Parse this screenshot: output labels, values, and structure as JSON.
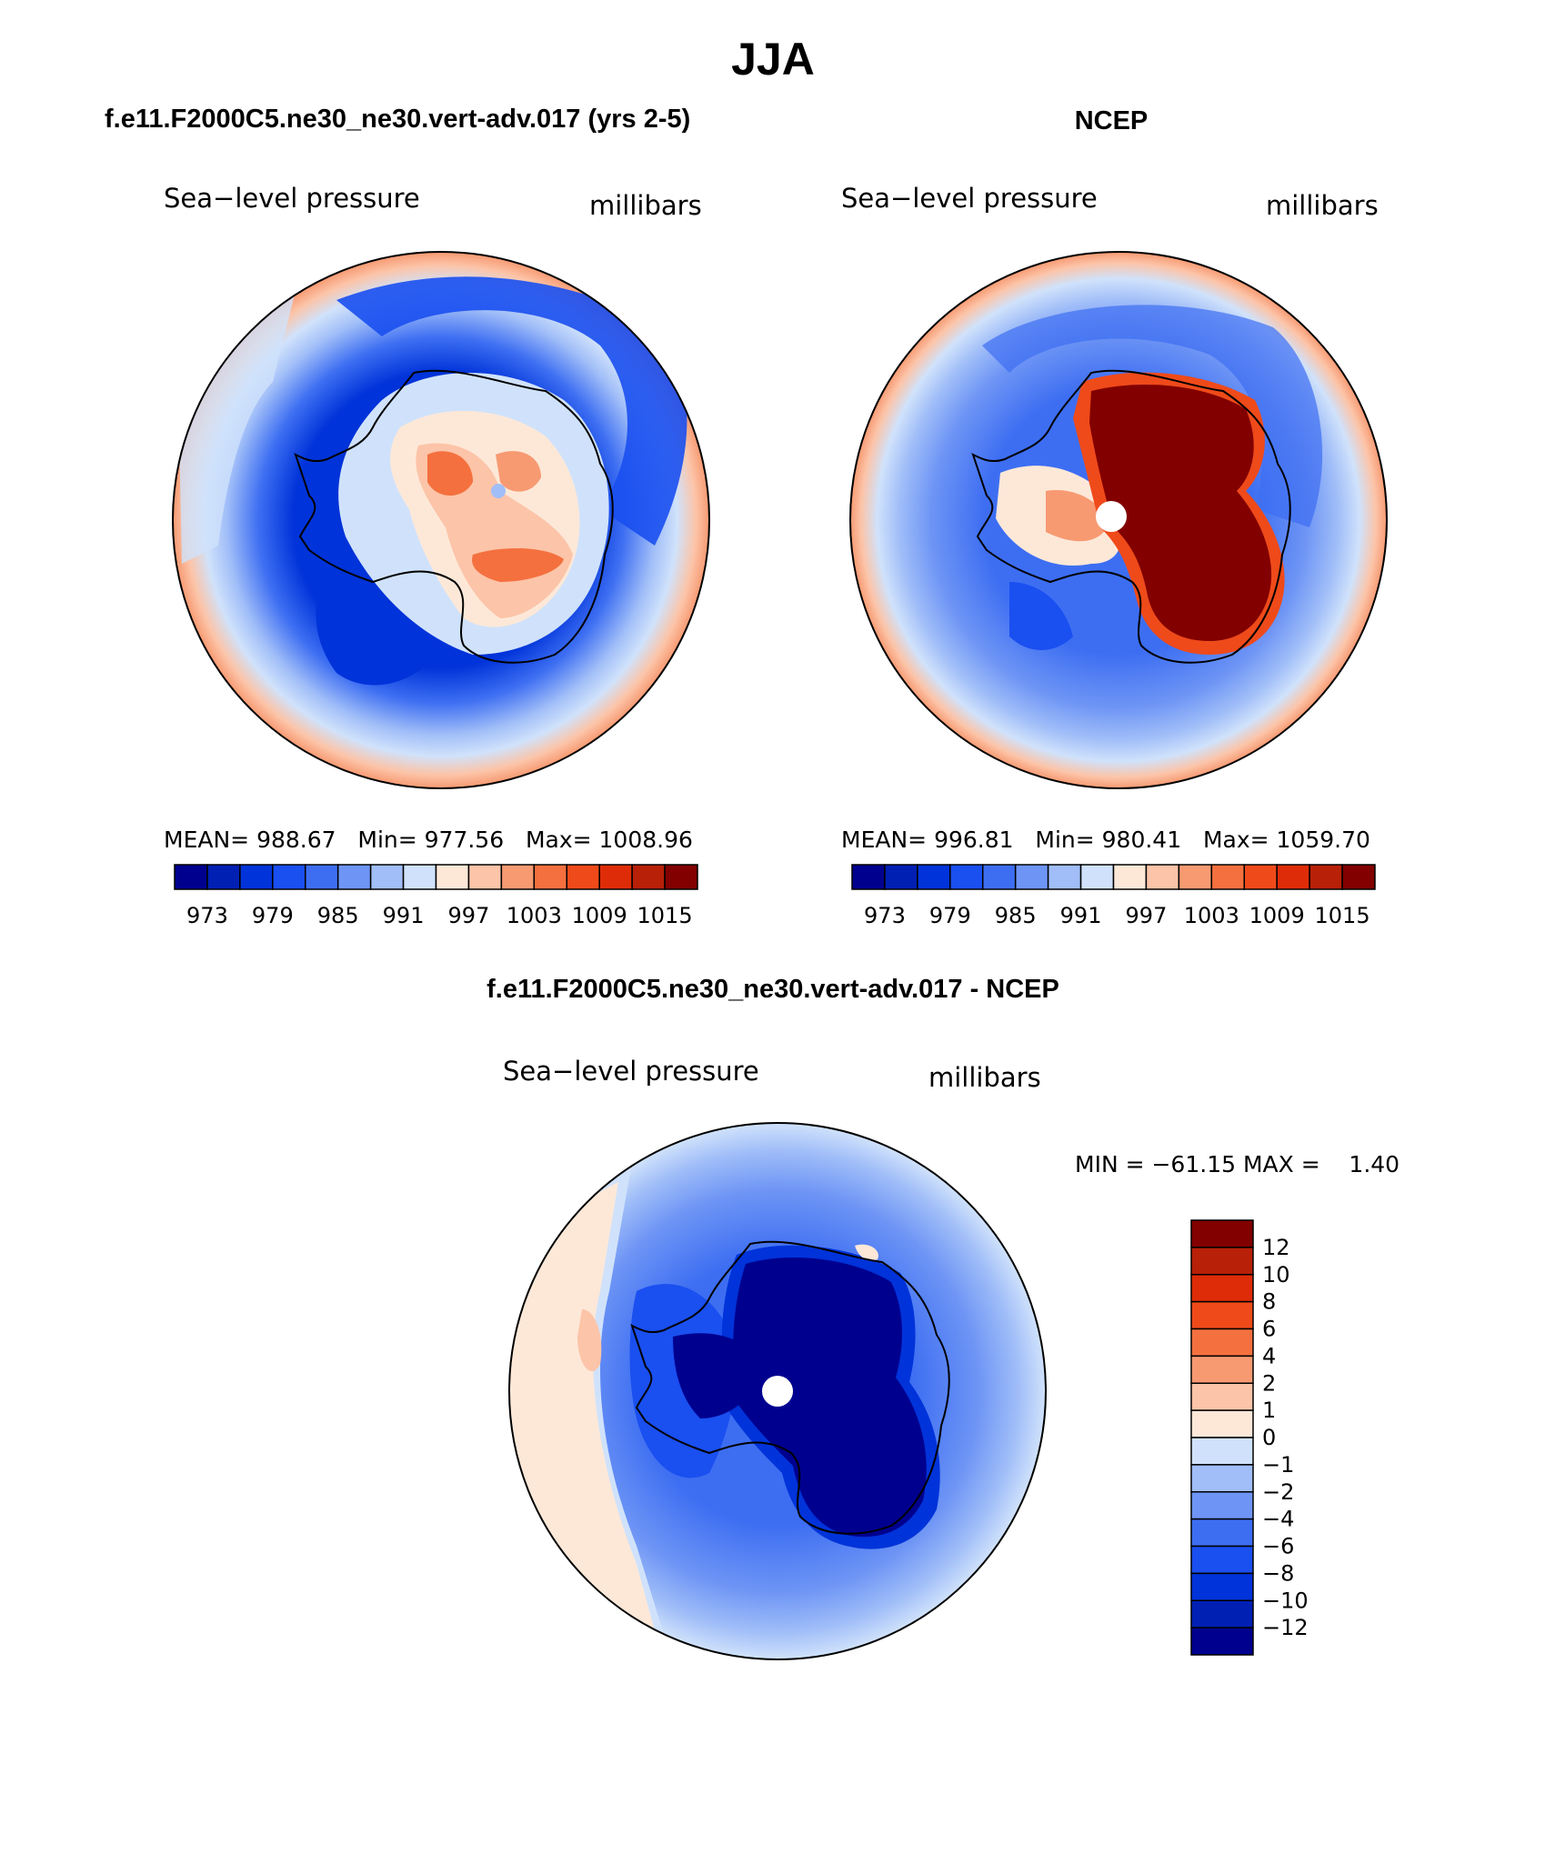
{
  "figure": {
    "title": "JJA",
    "subtitle_left": "f.e11.F2000C5.ne30_ne30.vert-adv.017 (yrs 2-5)",
    "subtitle_right": "NCEP",
    "diff_title": "f.e11.F2000C5.ne30_ne30.vert-adv.017 - NCEP"
  },
  "panels": {
    "model": {
      "variable": "Sea−level pressure",
      "units": "millibars",
      "stats": "MEAN= 988.67   Min= 977.56   Max= 1008.96",
      "mean": 988.67,
      "min": 977.56,
      "max": 1008.96
    },
    "obs": {
      "variable": "Sea−level pressure",
      "units": "millibars",
      "stats": "MEAN= 996.81   Min= 980.41   Max= 1059.70",
      "mean": 996.81,
      "min": 980.41,
      "max": 1059.7
    },
    "diff": {
      "variable": "Sea−level pressure",
      "units": "millibars",
      "stats": "MIN = −61.15 MAX =    1.40",
      "min": -61.15,
      "max": 1.4
    }
  },
  "colorbars": {
    "abs_labels": [
      "973",
      "979",
      "985",
      "991",
      "997",
      "1003",
      "1009",
      "1015"
    ],
    "abs_colors": [
      "#00008f",
      "#0020b4",
      "#0033d9",
      "#1a4ff0",
      "#3d6ef2",
      "#6e95f5",
      "#a1bef8",
      "#d0e2fb",
      "#fde8d8",
      "#fcc4a8",
      "#f79a72",
      "#f4703f",
      "#ef4a1a",
      "#df2c08",
      "#b82008",
      "#820000"
    ],
    "diff_labels": [
      "12",
      "10",
      "8",
      "6",
      "4",
      "2",
      "1",
      "0",
      "−1",
      "−2",
      "−4",
      "−6",
      "−8",
      "−10",
      "−12"
    ],
    "diff_colors": [
      "#820000",
      "#b82008",
      "#df2c08",
      "#ef4a1a",
      "#f4703f",
      "#f79a72",
      "#fcc4a8",
      "#fde8d8",
      "#d0e2fb",
      "#a1bef8",
      "#6e95f5",
      "#3d6ef2",
      "#1a4ff0",
      "#0033d9",
      "#0020b4",
      "#00008f"
    ]
  }
}
